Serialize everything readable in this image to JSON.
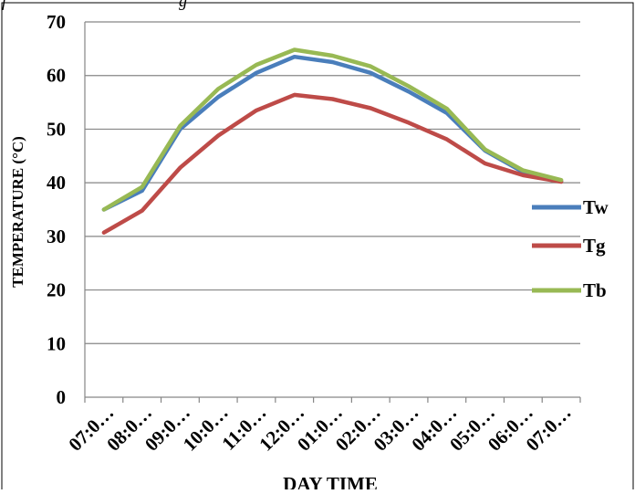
{
  "caption_fragment": "f                                          g",
  "chart_data": {
    "type": "line",
    "title": "",
    "xlabel": "DAY TIME",
    "ylabel": "TEMPERATURE (°C)",
    "ylim": [
      0,
      70
    ],
    "yticks": [
      0,
      10,
      20,
      30,
      40,
      50,
      60,
      70
    ],
    "grid": true,
    "legend_position": "right",
    "categories": [
      "07:0…",
      "08:0…",
      "09:0…",
      "10:0…",
      "11:0…",
      "12:0…",
      "01:0…",
      "02:0…",
      "03:0…",
      "04:0…",
      "05:0…",
      "06:0…",
      "07:0…"
    ],
    "series": [
      {
        "name": "Tw",
        "color": "#4a7ebb",
        "values": [
          35,
          38.5,
          50,
          56,
          60.5,
          63.5,
          62.5,
          60.5,
          57,
          53,
          46,
          42,
          40.3
        ]
      },
      {
        "name": "Tg",
        "color": "#be4b48",
        "values": [
          30.7,
          34.8,
          42.8,
          48.8,
          53.5,
          56.4,
          55.6,
          53.9,
          51.2,
          48.1,
          43.6,
          41.4,
          40.2
        ]
      },
      {
        "name": "Tb",
        "color": "#98b954",
        "values": [
          35,
          39.2,
          50.6,
          57.5,
          62,
          64.8,
          63.7,
          61.7,
          58,
          53.8,
          46.2,
          42.3,
          40.5
        ]
      }
    ]
  }
}
